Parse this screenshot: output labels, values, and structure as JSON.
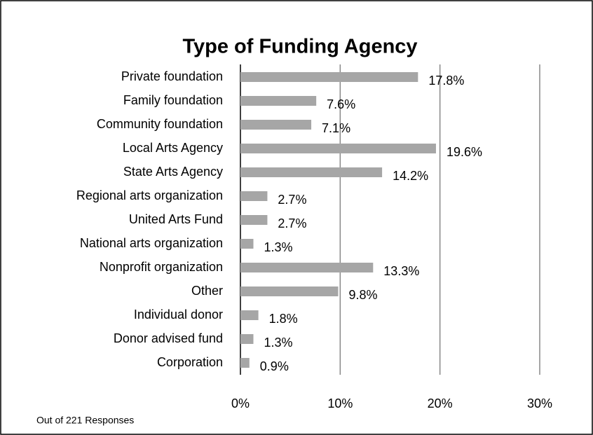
{
  "chart_data": {
    "type": "hbar",
    "title": "Type of Funding Agency",
    "categories": [
      "Private foundation",
      "Family foundation",
      "Community foundation",
      "Local Arts Agency",
      "State Arts Agency",
      "Regional arts organization",
      "United Arts Fund",
      "National arts organization",
      "Nonprofit organization",
      "Other",
      "Individual donor",
      "Donor advised fund",
      "Corporation"
    ],
    "values": [
      17.8,
      7.6,
      7.1,
      19.6,
      14.2,
      2.7,
      2.7,
      1.3,
      13.3,
      9.8,
      1.8,
      1.3,
      0.9
    ],
    "value_labels": [
      "17.8%",
      "7.6%",
      "7.1%",
      "19.6%",
      "14.2%",
      "2.7%",
      "2.7%",
      "1.3%",
      "13.3%",
      "9.8%",
      "1.8%",
      "1.3%",
      "0.9%"
    ],
    "color": "#a6a6a6",
    "xlim": [
      0,
      30
    ],
    "xticks": [
      {
        "value": 0,
        "label": "0%"
      },
      {
        "value": 10,
        "label": "10%"
      },
      {
        "value": 20,
        "label": "20%"
      },
      {
        "value": 30,
        "label": "30%"
      }
    ],
    "grid": true,
    "footnote": "Out of 221 Responses"
  }
}
